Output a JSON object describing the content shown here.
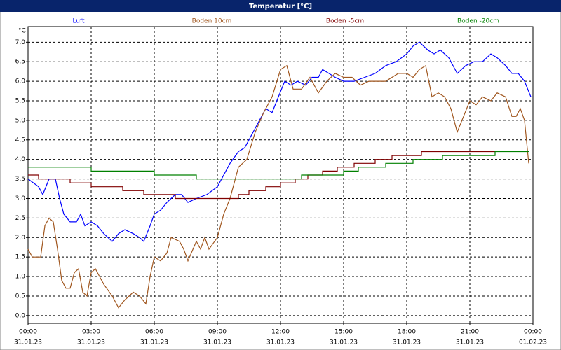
{
  "chart_data": {
    "type": "line",
    "title": "Temperatur [°C]",
    "y_label": "°C",
    "xlim": [
      0,
      24
    ],
    "ylim": [
      -0.2,
      7.4
    ],
    "grid": true,
    "xticks": [
      {
        "value": 0,
        "label": "00:00",
        "date": "31.01.23"
      },
      {
        "value": 3,
        "label": "03:00",
        "date": "31.01.23"
      },
      {
        "value": 6,
        "label": "06:00",
        "date": "31.01.23"
      },
      {
        "value": 9,
        "label": "09:00",
        "date": "31.01.23"
      },
      {
        "value": 12,
        "label": "12:00",
        "date": "31.01.23"
      },
      {
        "value": 15,
        "label": "15:00",
        "date": "31.01.23"
      },
      {
        "value": 18,
        "label": "18:00",
        "date": "31.01.23"
      },
      {
        "value": 21,
        "label": "21:00",
        "date": "31.01.23"
      },
      {
        "value": 24,
        "label": "00:00",
        "date": "01.02.23"
      }
    ],
    "yticks": [
      {
        "value": 0,
        "label": "0,0"
      },
      {
        "value": 0.5,
        "label": "0,5"
      },
      {
        "value": 1,
        "label": "1,0"
      },
      {
        "value": 1.5,
        "label": "1,5"
      },
      {
        "value": 2,
        "label": "2,0"
      },
      {
        "value": 2.5,
        "label": "2,5"
      },
      {
        "value": 3,
        "label": "3,0"
      },
      {
        "value": 3.5,
        "label": "3,5"
      },
      {
        "value": 4,
        "label": "4,0"
      },
      {
        "value": 4.5,
        "label": "4,5"
      },
      {
        "value": 5,
        "label": "5,0"
      },
      {
        "value": 5.5,
        "label": "5,5"
      },
      {
        "value": 6,
        "label": "6,0"
      },
      {
        "value": 6.5,
        "label": "6,5"
      },
      {
        "value": 7,
        "label": "7,0"
      }
    ],
    "series": [
      {
        "name": "Luft",
        "color": "#0000ff",
        "x": [
          0,
          0.5,
          0.7,
          1.0,
          1.3,
          1.5,
          1.7,
          2.0,
          2.3,
          2.5,
          2.7,
          3.0,
          3.3,
          3.6,
          3.8,
          4.0,
          4.3,
          4.6,
          5.0,
          5.3,
          5.5,
          5.8,
          6.0,
          6.3,
          6.6,
          7.0,
          7.3,
          7.6,
          8.0,
          8.5,
          9.0,
          9.3,
          9.6,
          10.0,
          10.3,
          10.6,
          11.0,
          11.3,
          11.6,
          11.9,
          12.2,
          12.5,
          12.8,
          13.2,
          13.5,
          13.8,
          14.0,
          14.3,
          14.6,
          15.0,
          15.5,
          16.0,
          16.5,
          17.0,
          17.5,
          18.0,
          18.3,
          18.6,
          19.0,
          19.3,
          19.6,
          20.0,
          20.4,
          20.8,
          21.2,
          21.6,
          22.0,
          22.3,
          22.7,
          23.0,
          23.3,
          23.6,
          23.9
        ],
        "values": [
          3.5,
          3.3,
          3.1,
          3.5,
          3.5,
          3.0,
          2.6,
          2.4,
          2.4,
          2.6,
          2.3,
          2.4,
          2.3,
          2.1,
          2.0,
          1.9,
          2.1,
          2.2,
          2.1,
          2.0,
          1.9,
          2.3,
          2.6,
          2.7,
          2.9,
          3.1,
          3.1,
          2.9,
          3.0,
          3.1,
          3.3,
          3.6,
          3.9,
          4.2,
          4.3,
          4.6,
          5.0,
          5.3,
          5.2,
          5.6,
          6.0,
          5.9,
          6.0,
          5.9,
          6.1,
          6.1,
          6.3,
          6.2,
          6.1,
          6.0,
          6.0,
          6.1,
          6.2,
          6.4,
          6.5,
          6.7,
          6.9,
          7.0,
          6.8,
          6.7,
          6.8,
          6.6,
          6.2,
          6.4,
          6.5,
          6.5,
          6.7,
          6.6,
          6.4,
          6.2,
          6.2,
          6.0,
          5.6
        ]
      },
      {
        "name": "Boden 10cm",
        "color": "#a0561e",
        "x": [
          0,
          0.2,
          0.6,
          0.8,
          1.0,
          1.2,
          1.4,
          1.6,
          1.8,
          2.0,
          2.2,
          2.4,
          2.6,
          2.8,
          3.0,
          3.2,
          3.4,
          3.6,
          4.0,
          4.3,
          4.6,
          5.0,
          5.3,
          5.6,
          5.8,
          6.0,
          6.3,
          6.6,
          6.8,
          7.2,
          7.4,
          7.6,
          8.0,
          8.2,
          8.4,
          8.6,
          9.0,
          9.3,
          9.6,
          10.0,
          10.4,
          10.8,
          11.2,
          11.6,
          12.0,
          12.3,
          12.6,
          13.0,
          13.4,
          13.8,
          14.2,
          14.6,
          15.0,
          15.4,
          15.8,
          16.2,
          17.0,
          17.6,
          18.0,
          18.3,
          18.6,
          18.9,
          19.2,
          19.5,
          19.8,
          20.1,
          20.4,
          20.7,
          21.0,
          21.3,
          21.6,
          22.0,
          22.3,
          22.7,
          23.0,
          23.2,
          23.4,
          23.6,
          23.8
        ],
        "values": [
          1.7,
          1.5,
          1.5,
          2.3,
          2.5,
          2.4,
          1.7,
          0.9,
          0.7,
          0.7,
          1.1,
          1.2,
          0.6,
          0.5,
          1.1,
          1.2,
          1.0,
          0.8,
          0.5,
          0.2,
          0.4,
          0.6,
          0.5,
          0.3,
          1.0,
          1.5,
          1.4,
          1.6,
          2.0,
          1.9,
          1.7,
          1.4,
          1.9,
          1.7,
          2.0,
          1.7,
          2.0,
          2.6,
          3.0,
          3.8,
          4.0,
          4.7,
          5.2,
          5.6,
          6.3,
          6.4,
          5.8,
          5.8,
          6.1,
          5.7,
          6.0,
          6.2,
          6.1,
          6.1,
          5.9,
          6.0,
          6.0,
          6.2,
          6.2,
          6.1,
          6.3,
          6.4,
          5.6,
          5.7,
          5.6,
          5.3,
          4.7,
          5.1,
          5.5,
          5.4,
          5.6,
          5.5,
          5.7,
          5.6,
          5.1,
          5.1,
          5.3,
          5.0,
          3.9
        ]
      },
      {
        "name": "Boden -5cm",
        "color": "#800000",
        "x": [
          0,
          0.5,
          0.5,
          2,
          2,
          3,
          3,
          4.5,
          4.5,
          5.5,
          5.5,
          7,
          7,
          10,
          10,
          10.5,
          10.5,
          11.3,
          11.3,
          12,
          12,
          12.7,
          12.7,
          13.3,
          13.3,
          14,
          14,
          14.7,
          14.7,
          15.5,
          15.5,
          16.5,
          16.5,
          17.3,
          17.3,
          18.7,
          18.7,
          22.2
        ],
        "values": [
          3.6,
          3.6,
          3.5,
          3.5,
          3.4,
          3.4,
          3.3,
          3.3,
          3.2,
          3.2,
          3.1,
          3.1,
          3.0,
          3.0,
          3.1,
          3.1,
          3.2,
          3.2,
          3.3,
          3.3,
          3.4,
          3.4,
          3.5,
          3.5,
          3.6,
          3.6,
          3.7,
          3.7,
          3.8,
          3.8,
          3.9,
          3.9,
          4.0,
          4.0,
          4.1,
          4.1,
          4.2,
          4.2
        ]
      },
      {
        "name": "Boden -20cm",
        "color": "#008000",
        "x": [
          0,
          3,
          3,
          6,
          6,
          8,
          8,
          13,
          13,
          15,
          15,
          15.7,
          15.7,
          17,
          17,
          18.3,
          18.3,
          19.7,
          19.7,
          22.2,
          22.2,
          23.8
        ],
        "values": [
          3.8,
          3.8,
          3.7,
          3.7,
          3.6,
          3.6,
          3.5,
          3.5,
          3.6,
          3.6,
          3.7,
          3.7,
          3.8,
          3.8,
          3.9,
          3.9,
          4.0,
          4.0,
          4.1,
          4.1,
          4.2,
          4.2
        ]
      }
    ]
  }
}
